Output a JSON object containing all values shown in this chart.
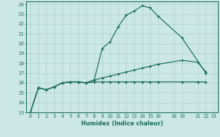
{
  "xlabel": "Humidex (Indice chaleur)",
  "bg_color": "#cce8e4",
  "grid_color": "#aacfcb",
  "line_color": "#1a6b5a",
  "xlim": [
    -0.5,
    23.5
  ],
  "ylim": [
    13,
    24.3
  ],
  "xticks": [
    0,
    1,
    2,
    3,
    4,
    5,
    6,
    7,
    8,
    9,
    10,
    11,
    12,
    13,
    14,
    15,
    16,
    18,
    19,
    21,
    22,
    23
  ],
  "yticks": [
    13,
    14,
    15,
    16,
    17,
    18,
    19,
    20,
    21,
    22,
    23,
    24
  ],
  "line1_x": [
    0,
    1,
    2,
    3,
    4,
    5,
    6,
    7,
    8,
    9,
    10,
    11,
    12,
    13,
    14,
    15,
    16,
    19,
    22
  ],
  "line1_y": [
    13.0,
    15.5,
    15.3,
    15.6,
    16.0,
    16.1,
    16.1,
    16.0,
    16.3,
    19.5,
    20.2,
    21.7,
    22.9,
    23.3,
    23.85,
    23.65,
    22.8,
    20.6,
    17.0
  ],
  "line2_x": [
    0,
    1,
    2,
    3,
    4,
    5,
    6,
    7,
    8,
    9,
    10,
    11,
    12,
    13,
    14,
    15,
    16,
    19,
    21,
    22
  ],
  "line2_y": [
    13.0,
    15.5,
    15.3,
    15.6,
    16.0,
    16.1,
    16.1,
    16.0,
    16.3,
    16.5,
    16.7,
    16.9,
    17.1,
    17.3,
    17.5,
    17.7,
    17.9,
    18.3,
    18.1,
    17.1
  ],
  "line3_x": [
    0,
    1,
    2,
    3,
    4,
    5,
    6,
    7,
    8,
    9,
    10,
    11,
    12,
    13,
    14,
    15,
    16,
    19,
    21,
    22
  ],
  "line3_y": [
    13.0,
    15.5,
    15.3,
    15.6,
    16.0,
    16.1,
    16.1,
    16.0,
    16.1,
    16.1,
    16.1,
    16.1,
    16.1,
    16.1,
    16.1,
    16.1,
    16.1,
    16.1,
    16.1,
    16.1
  ]
}
